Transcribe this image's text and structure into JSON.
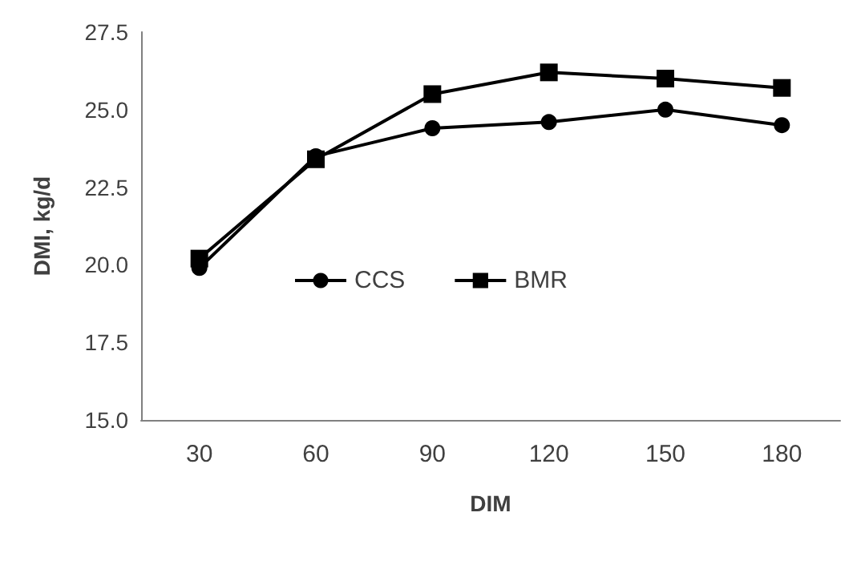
{
  "chart_data": {
    "type": "line",
    "xlabel": "DIM",
    "ylabel": "DMI, kg/d",
    "categories": [
      "30",
      "60",
      "90",
      "120",
      "150",
      "180"
    ],
    "ylim": [
      15,
      27.5
    ],
    "yticks": [
      {
        "value": 15,
        "label": "15.0"
      },
      {
        "value": 17.5,
        "label": "17.5"
      },
      {
        "value": 20,
        "label": "20.0"
      },
      {
        "value": 22.5,
        "label": "22.5"
      },
      {
        "value": 25,
        "label": "25.0"
      },
      {
        "value": 27.5,
        "label": "27.5"
      }
    ],
    "grid": false,
    "legend": "center",
    "line_style": "solid",
    "series": [
      {
        "name": "CCS",
        "color": "#000000",
        "marker": "circle",
        "values": [
          19.9,
          23.5,
          24.4,
          24.6,
          25.0,
          24.5
        ]
      },
      {
        "name": "BMR",
        "color": "#000000",
        "marker": "square",
        "values": [
          20.2,
          23.4,
          25.5,
          26.2,
          26.0,
          25.7
        ]
      }
    ]
  }
}
